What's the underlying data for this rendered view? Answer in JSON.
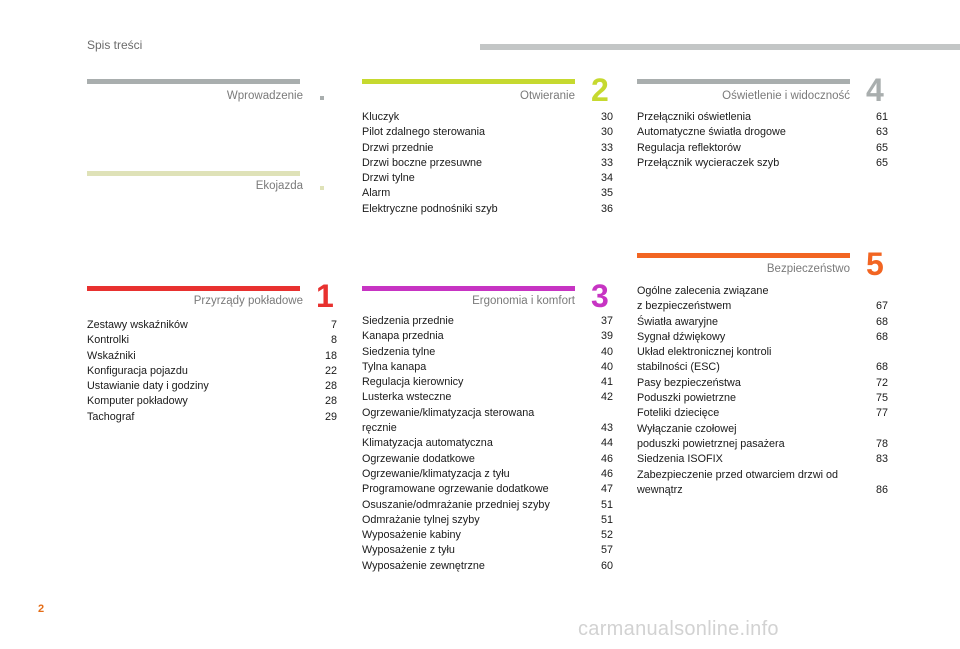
{
  "header": {
    "title": "Spis treści"
  },
  "footer": {
    "page_number": "2",
    "watermark": "carmanualsonline.info"
  },
  "sections": {
    "wprowadzenie": {
      "title": "Wprowadzenie",
      "color": "#a9aeae"
    },
    "ekojazda": {
      "title": "Ekojazda",
      "color": "#dfe2b8"
    },
    "przyrzady": {
      "title": "Przyrządy pokładowe",
      "number": "1",
      "color": "#e8312f",
      "items": [
        {
          "label": "Zestawy wskaźników",
          "page": "7"
        },
        {
          "label": "Kontrolki",
          "page": "8"
        },
        {
          "label": "Wskaźniki",
          "page": "18"
        },
        {
          "label": "Konfiguracja pojazdu",
          "page": "22"
        },
        {
          "label": "Ustawianie daty i godziny",
          "page": "28"
        },
        {
          "label": "Komputer pokładowy",
          "page": "28"
        },
        {
          "label": "Tachograf",
          "page": "29"
        }
      ]
    },
    "otwieranie": {
      "title": "Otwieranie",
      "number": "2",
      "color": "#c6d92f",
      "items": [
        {
          "label": "Kluczyk",
          "page": "30"
        },
        {
          "label": "Pilot zdalnego sterowania",
          "page": "30"
        },
        {
          "label": "Drzwi przednie",
          "page": "33"
        },
        {
          "label": "Drzwi boczne przesuwne",
          "page": "33"
        },
        {
          "label": "Drzwi tylne",
          "page": "34"
        },
        {
          "label": "Alarm",
          "page": "35"
        },
        {
          "label": "Elektryczne podnośniki szyb",
          "page": "36"
        }
      ]
    },
    "ergonomia": {
      "title": "Ergonomia i komfort",
      "number": "3",
      "color": "#c734c3",
      "items": [
        {
          "label": "Siedzenia przednie",
          "page": "37"
        },
        {
          "label": "Kanapa przednia",
          "page": "39"
        },
        {
          "label": "Siedzenia tylne",
          "page": "40"
        },
        {
          "label": "Tylna kanapa",
          "page": "40"
        },
        {
          "label": "Regulacja kierownicy",
          "page": "41"
        },
        {
          "label": "Lusterka wsteczne",
          "page": "42"
        },
        {
          "label": "Ogrzewanie/klimatyzacja sterowana\nręcznie",
          "page": "43"
        },
        {
          "label": "Klimatyzacja automatyczna",
          "page": "44"
        },
        {
          "label": "Ogrzewanie dodatkowe",
          "page": "46"
        },
        {
          "label": "Ogrzewanie/klimatyzacja z tyłu",
          "page": "46"
        },
        {
          "label": "Programowane ogrzewanie dodatkowe",
          "page": "47"
        },
        {
          "label": "Osuszanie/odmrażanie przedniej szyby",
          "page": "51"
        },
        {
          "label": "Odmrażanie tylnej szyby",
          "page": "51"
        },
        {
          "label": "Wyposażenie kabiny",
          "page": "52"
        },
        {
          "label": "Wyposażenie z tyłu",
          "page": "57"
        },
        {
          "label": "Wyposażenie zewnętrzne",
          "page": "60"
        }
      ]
    },
    "oswietlenie": {
      "title": "Oświetlenie i widoczność",
      "number": "4",
      "color": "#a9aeae",
      "items": [
        {
          "label": "Przełączniki oświetlenia",
          "page": "61"
        },
        {
          "label": "Automatyczne światła drogowe",
          "page": "63"
        },
        {
          "label": "Regulacja reflektorów",
          "page": "65"
        },
        {
          "label": "Przełącznik wycieraczek szyb",
          "page": "65"
        }
      ]
    },
    "bezpieczenstwo": {
      "title": "Bezpieczeństwo",
      "number": "5",
      "color": "#f26522",
      "items": [
        {
          "label": "Ogólne zalecenia związane\nz bezpieczeństwem",
          "page": "67"
        },
        {
          "label": "Światła awaryjne",
          "page": "68"
        },
        {
          "label": "Sygnał dźwiękowy",
          "page": "68"
        },
        {
          "label": "Układ elektronicznej kontroli\nstabilności (ESC)",
          "page": "68"
        },
        {
          "label": "Pasy bezpieczeństwa",
          "page": "72"
        },
        {
          "label": "Poduszki powietrzne",
          "page": "75"
        },
        {
          "label": "Foteliki dziecięce",
          "page": "77"
        },
        {
          "label": "Wyłączanie czołowej\npoduszki powietrznej pasażera",
          "page": "78"
        },
        {
          "label": "Siedzenia ISOFIX",
          "page": "83"
        },
        {
          "label": "Zabezpieczenie przed otwarciem drzwi od\nwewnątrz",
          "page": "86"
        }
      ]
    }
  }
}
